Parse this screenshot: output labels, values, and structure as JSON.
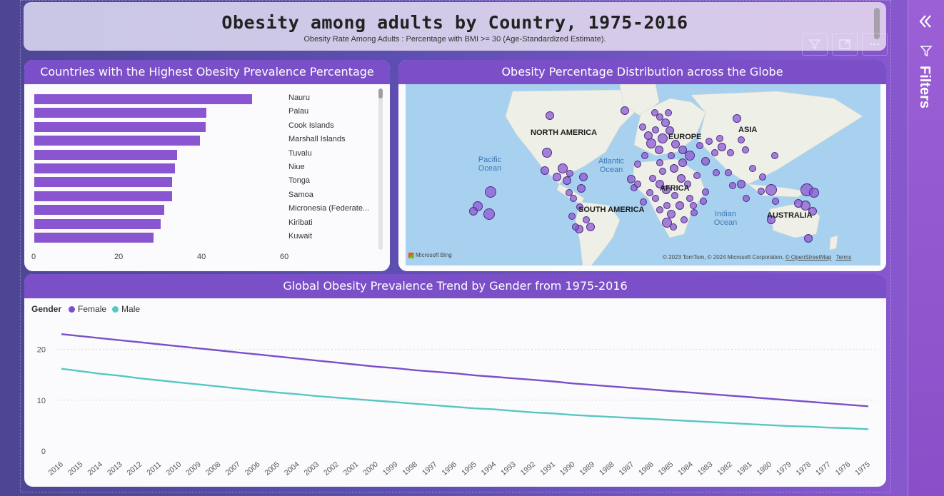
{
  "header": {
    "title": "Obesity among adults by Country, 1975-2016",
    "subtitle": "Obesity Rate Among Adults : Percentage with BMI >= 30 (Age-Standardized Estimate).",
    "icons": [
      "filter-icon",
      "focus-mode-icon",
      "more-options-icon"
    ]
  },
  "bar_panel": {
    "title": "Countries with the Highest Obesity Prevalence Percentage"
  },
  "map_panel": {
    "title": "Obesity Percentage Distribution across the Globe",
    "continents": [
      "NORTH AMERICA",
      "EUROPE",
      "ASIA",
      "AFRICA",
      "SOUTH AMERICA",
      "AUSTRALIA"
    ],
    "oceans": [
      "Pacific Ocean",
      "Atlantic Ocean",
      "Indian Ocean"
    ],
    "bing_logo": "Microsoft Bing",
    "copyright": "© 2023 TomTom, © 2024 Microsoft Corporation,",
    "osm_link": "© OpenStreetMap",
    "terms_link": "Terms"
  },
  "line_panel": {
    "title": "Global Obesity Prevalence Trend by Gender from 1975-2016",
    "legend_title": "Gender",
    "legend": [
      {
        "name": "Female",
        "color": "#7b4fc8"
      },
      {
        "name": "Male",
        "color": "#56c7c1"
      }
    ]
  },
  "filters_pane": {
    "label": "Filters",
    "collapse_icon": "double-chevron-left-icon",
    "filter_icon": "filter-icon"
  },
  "chart_data": [
    {
      "type": "bar",
      "orientation": "horizontal",
      "title": "Countries with the Highest Obesity Prevalence Percentage",
      "categories": [
        "Nauru",
        "Palau",
        "Cook Islands",
        "Marshall Islands",
        "Tuvalu",
        "Niue",
        "Tonga",
        "Samoa",
        "Micronesia (Federate...",
        "Kiribati",
        "Kuwait"
      ],
      "values": [
        52.5,
        41.5,
        41.3,
        40,
        34.5,
        34,
        33.3,
        33.2,
        31.3,
        30.6,
        28.8
      ],
      "xlim": [
        0,
        60
      ],
      "xticks": [
        0,
        20,
        40,
        60
      ],
      "color": "#8a55d0"
    },
    {
      "type": "line",
      "title": "Global Obesity Prevalence Trend by Gender from 1975-2016",
      "x": [
        2016,
        2015,
        2014,
        2013,
        2012,
        2011,
        2010,
        2009,
        2008,
        2007,
        2006,
        2005,
        2004,
        2003,
        2002,
        2001,
        2000,
        1999,
        1998,
        1997,
        1996,
        1995,
        1994,
        1993,
        1992,
        1991,
        1990,
        1989,
        1988,
        1987,
        1986,
        1985,
        1984,
        1983,
        1982,
        1981,
        1980,
        1979,
        1978,
        1977,
        1976,
        1975
      ],
      "ylim": [
        0,
        25
      ],
      "yticks": [
        0,
        10,
        20
      ],
      "grid": true,
      "legend_position": "top-left",
      "series": [
        {
          "name": "Female",
          "color": "#7b4fc8",
          "values": [
            23.0,
            22.6,
            22.2,
            21.8,
            21.4,
            21.0,
            20.6,
            20.2,
            19.8,
            19.4,
            19.0,
            18.6,
            18.2,
            17.8,
            17.4,
            17.0,
            16.6,
            16.3,
            15.9,
            15.6,
            15.3,
            14.9,
            14.6,
            14.3,
            14.0,
            13.7,
            13.3,
            13.0,
            12.7,
            12.4,
            12.1,
            11.8,
            11.5,
            11.2,
            10.9,
            10.6,
            10.3,
            10.0,
            9.7,
            9.4,
            9.1,
            8.8
          ]
        },
        {
          "name": "Male",
          "color": "#56c7c1",
          "values": [
            16.2,
            15.7,
            15.2,
            14.8,
            14.3,
            13.9,
            13.5,
            13.1,
            12.7,
            12.3,
            11.9,
            11.5,
            11.2,
            10.8,
            10.5,
            10.2,
            9.9,
            9.6,
            9.3,
            9.0,
            8.7,
            8.4,
            8.2,
            7.9,
            7.6,
            7.4,
            7.1,
            6.9,
            6.7,
            6.5,
            6.3,
            6.1,
            5.9,
            5.7,
            5.5,
            5.3,
            5.1,
            4.9,
            4.8,
            4.6,
            4.5,
            4.3
          ]
        }
      ]
    }
  ]
}
